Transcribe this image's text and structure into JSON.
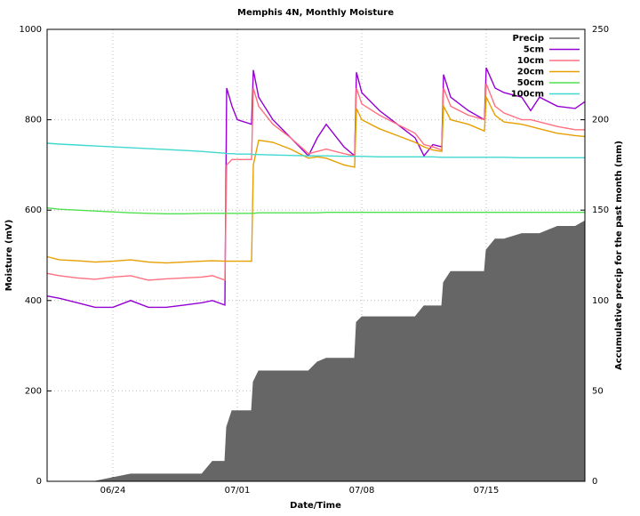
{
  "chart_data": {
    "type": "line",
    "title": "Memphis 4N, Monthly Moisture",
    "xlabel": "Date/Time",
    "ylabel": "Moisture (mV)",
    "y2label": "Accumulative precip for the past month (mm)",
    "x": [
      20.3,
      21,
      22,
      23,
      24,
      25,
      26,
      27,
      28,
      29,
      29.6,
      30.3,
      30.4,
      30.7,
      31,
      31.8,
      31.9,
      32.2,
      33,
      34,
      35,
      35.5,
      36,
      37,
      37.6,
      37.7,
      38,
      39,
      40,
      41,
      41.5,
      42,
      42.5,
      42.6,
      43,
      44,
      44.9,
      45,
      45.5,
      46,
      47,
      47.5,
      48,
      49,
      50,
      50.55
    ],
    "xlim": [
      20.3,
      50.55
    ],
    "xticks": [
      {
        "value": 24,
        "label": "06/24"
      },
      {
        "value": 31,
        "label": "07/01"
      },
      {
        "value": 38,
        "label": "07/08"
      },
      {
        "value": 45,
        "label": "07/15"
      }
    ],
    "ylim": [
      0,
      1000
    ],
    "yticks": [
      0,
      200,
      400,
      600,
      800,
      1000
    ],
    "y2lim": [
      0,
      250
    ],
    "y2ticks": [
      0,
      50,
      100,
      150,
      200,
      250
    ],
    "grid": true,
    "legend": "top-right",
    "series": [
      {
        "name": "Precip",
        "color": "#666666",
        "axis": "y2",
        "area": true,
        "values": [
          0,
          0,
          0,
          0,
          2,
          4,
          4,
          4,
          4,
          4,
          11,
          11,
          30,
          39,
          39,
          39,
          55,
          61,
          61,
          61,
          61,
          66,
          68,
          68,
          68,
          88,
          91,
          91,
          91,
          91,
          97,
          97,
          97,
          110,
          116,
          116,
          116,
          128,
          134,
          134,
          137,
          137,
          137,
          141,
          141,
          144
        ]
      },
      {
        "name": "5cm",
        "color": "#9400d3",
        "values": [
          410,
          405,
          395,
          385,
          385,
          400,
          385,
          385,
          390,
          395,
          400,
          390,
          870,
          830,
          800,
          790,
          910,
          850,
          800,
          760,
          720,
          760,
          790,
          740,
          720,
          905,
          860,
          820,
          790,
          760,
          720,
          745,
          740,
          900,
          850,
          820,
          800,
          915,
          870,
          860,
          850,
          820,
          850,
          830,
          825,
          840
        ]
      },
      {
        "name": "10cm",
        "color": "#ff7080",
        "values": [
          460,
          455,
          450,
          447,
          452,
          455,
          445,
          448,
          450,
          452,
          455,
          445,
          700,
          712,
          712,
          712,
          870,
          830,
          790,
          760,
          725,
          730,
          735,
          725,
          720,
          870,
          835,
          810,
          790,
          770,
          745,
          740,
          733,
          870,
          830,
          810,
          800,
          880,
          830,
          815,
          800,
          800,
          795,
          785,
          778,
          778
        ]
      },
      {
        "name": "20cm",
        "color": "#e69f00",
        "values": [
          497,
          490,
          488,
          485,
          487,
          490,
          485,
          483,
          485,
          487,
          488,
          487,
          487,
          487,
          487,
          487,
          700,
          755,
          750,
          735,
          715,
          718,
          715,
          700,
          695,
          825,
          800,
          780,
          765,
          750,
          740,
          733,
          730,
          830,
          800,
          790,
          775,
          850,
          810,
          795,
          790,
          785,
          780,
          770,
          765,
          763
        ]
      },
      {
        "name": "50cm",
        "color": "#50e050",
        "values": [
          605,
          602,
          600,
          598,
          596,
          594,
          593,
          592,
          592,
          593,
          593,
          593,
          593,
          593,
          593,
          593,
          593,
          594,
          594,
          594,
          594,
          594,
          595,
          595,
          595,
          595,
          595,
          595,
          595,
          595,
          595,
          595,
          595,
          595,
          595,
          595,
          595,
          595,
          595,
          595,
          595,
          595,
          595,
          595,
          595,
          595
        ]
      },
      {
        "name": "100cm",
        "color": "#40d8d0",
        "values": [
          748,
          746,
          744,
          742,
          740,
          738,
          736,
          734,
          732,
          730,
          728,
          726,
          725,
          725,
          724,
          724,
          723,
          723,
          722,
          721,
          720,
          720,
          720,
          719,
          719,
          719,
          719,
          718,
          718,
          718,
          718,
          718,
          717,
          717,
          717,
          717,
          717,
          717,
          717,
          717,
          716,
          716,
          716,
          716,
          716,
          716
        ]
      }
    ]
  }
}
